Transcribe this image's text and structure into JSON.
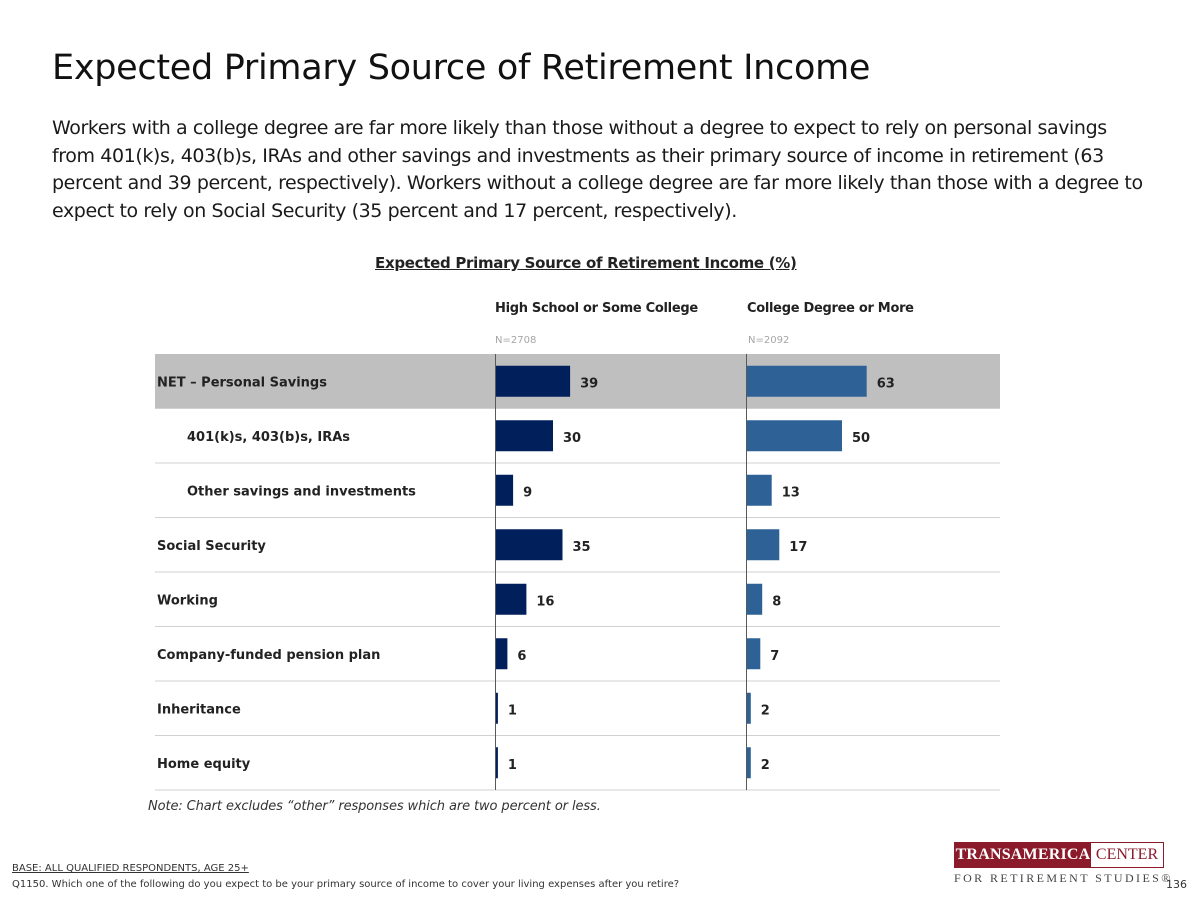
{
  "title": "Expected Primary Source of Retirement Income",
  "summary": "Workers with a college degree are far more likely than those without a degree to expect to rely on personal savings from 401(k)s, 403(b)s, IRAs and other savings and investments as their primary source of income in retirement (63 percent and 39 percent, respectively). Workers without a college degree are far more likely than those with a degree to expect to rely on Social Security (35 percent and 17 percent, respectively).",
  "chart_data": {
    "type": "bar",
    "title": "Expected Primary Source of Retirement Income (%)",
    "categories": [
      "NET – Personal Savings",
      "401(k)s, 403(b)s, IRAs",
      "Other savings and investments",
      "Social Security",
      "Working",
      "Company-funded pension plan",
      "Inheritance",
      "Home equity"
    ],
    "indented": [
      false,
      true,
      true,
      false,
      false,
      false,
      false,
      false
    ],
    "highlighted": [
      true,
      false,
      false,
      false,
      false,
      false,
      false,
      false
    ],
    "series": [
      {
        "name": "High School or Some College",
        "n": "N=2708",
        "color": "#001f5b",
        "values": [
          39,
          30,
          9,
          35,
          16,
          6,
          1,
          1
        ]
      },
      {
        "name": "College Degree or More",
        "n": "N=2092",
        "color": "#2e6296",
        "values": [
          63,
          50,
          13,
          17,
          8,
          7,
          2,
          2
        ]
      }
    ],
    "xlim": [
      0,
      100
    ],
    "highlight_color": "#bfbfbf",
    "grid": false
  },
  "note": "Note: Chart excludes “other” responses which are two percent or less.",
  "footer": {
    "base": "BASE: ALL QUALIFIED RESPONDENTS, AGE 25+",
    "question": "Q1150. Which one of the following do you expect to be your primary source of income to cover your living expenses after you retire?",
    "page": "136"
  },
  "logo": {
    "left": "TRANSAMERICA",
    "right": "CENTER",
    "bottom": "FOR RETIREMENT STUDIES®"
  }
}
